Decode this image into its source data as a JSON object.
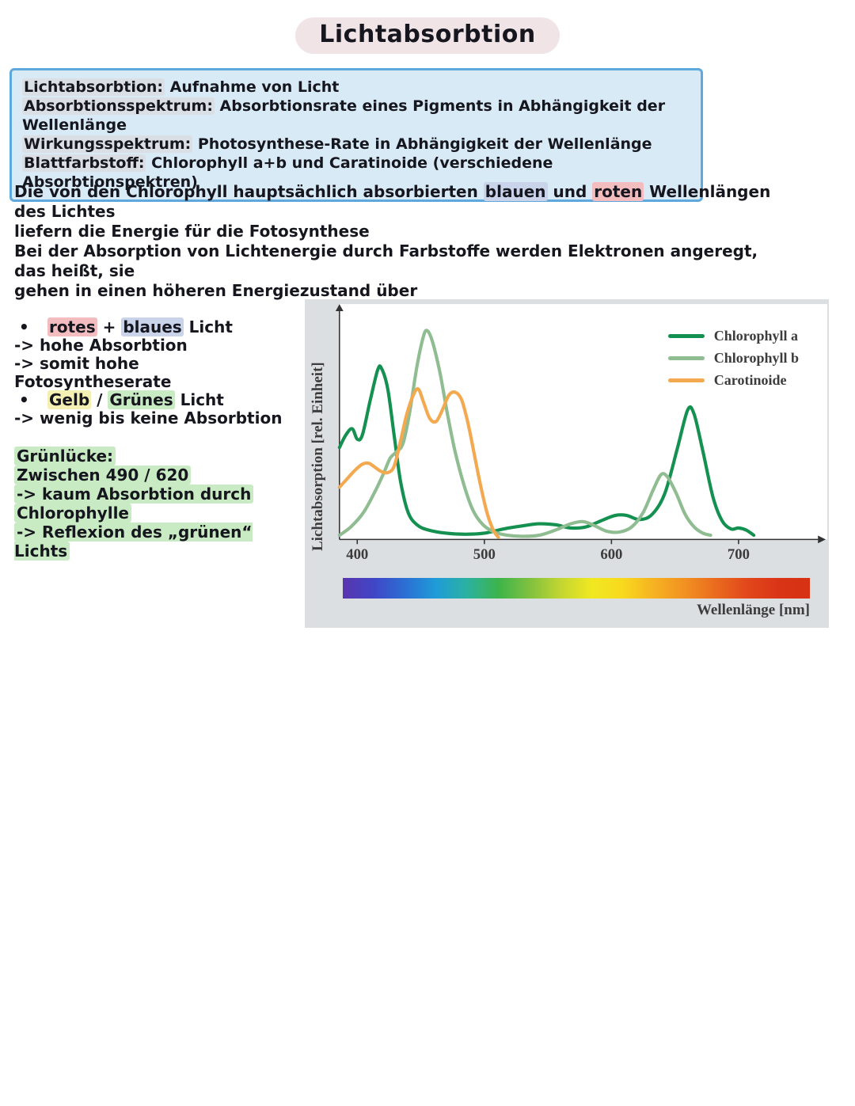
{
  "page": {
    "title": "Lichtabsorbtion"
  },
  "info_box": {
    "rows": [
      {
        "term": "Lichtabsorbtion:",
        "rest": " Aufnahme von Licht"
      },
      {
        "term": "Absorbtionsspektrum:",
        "rest": " Absorbtionsrate eines Pigments in Abhängigkeit der Wellenlänge"
      },
      {
        "term": "Wirkungsspektrum:",
        "rest": " Photosynthese-Rate in Abhängigkeit der Wellenlänge"
      },
      {
        "term": "Blattfarbstoff:",
        "rest": " Chlorophyll a+b und Caratinoide (verschiedene Absorbtionspektren)"
      }
    ]
  },
  "paragraph": {
    "line1_pre": "Die von den Chlorophyll hauptsächlich absorbierten ",
    "line1_blue": "blauen",
    "line1_mid": " und ",
    "line1_red": "roten",
    "line1_post": " Wellenlängen des Lichtes",
    "line2": "liefern die Energie für die Fotosynthese",
    "line3": "Bei der Absorption von Lichtenergie durch Farbstoffe werden Elektronen angeregt, das heißt, sie",
    "line4": "gehen in einen höheren Energiezustand über"
  },
  "bullets": {
    "b1_marker": "•",
    "b1_red": "rotes",
    "b1_plus": " + ",
    "b1_blue": "blaues",
    "b1_post": " Licht",
    "a1": "-> hohe Absorbtion",
    "a2": "-> somit hohe Fotosyntheserate",
    "b2_marker": "•",
    "b2_yellow": "Gelb",
    "b2_slash": " / ",
    "b2_green": "Grünes",
    "b2_post": " Licht",
    "a3": "-> wenig bis keine Absorbtion"
  },
  "green_block": {
    "l1": "Grünlücke:",
    "l2": "Zwischen 490 / 620",
    "l3": "-> kaum Absorbtion durch",
    "l4": "Chlorophylle",
    "l5": "-> Reflexion des „grünen“ Lichts"
  },
  "colors": {
    "info_box_bg": "#d9eaf7",
    "info_box_border": "#5fa8dc",
    "highlight_red": "#f3bcbe",
    "highlight_blue": "#c9d4ea",
    "highlight_yellow": "#f4f0b3",
    "highlight_green": "#c9ebc3",
    "title_highlight": "#f0e4e7",
    "figure_bg": "#dcdfe2"
  },
  "chart_data": {
    "type": "line",
    "title": "",
    "xlabel": "Wellenlänge [nm]",
    "ylabel": "Lichtabsorption [rel. Einheit]",
    "x_unit": "nm",
    "x_range": [
      386,
      760
    ],
    "xticks": [
      400,
      500,
      600,
      700
    ],
    "ylim": [
      0,
      1.05
    ],
    "grid": false,
    "legend_position": "top-right",
    "axis_color": "#333333",
    "tick_label_color": "#3c3c3c",
    "series": [
      {
        "name": "Chlorophyll a",
        "color": "#149150",
        "points": [
          [
            386,
            0.44
          ],
          [
            391,
            0.5
          ],
          [
            396,
            0.53
          ],
          [
            400,
            0.48
          ],
          [
            404,
            0.5
          ],
          [
            410,
            0.66
          ],
          [
            416,
            0.81
          ],
          [
            419,
            0.82
          ],
          [
            424,
            0.72
          ],
          [
            429,
            0.5
          ],
          [
            434,
            0.28
          ],
          [
            440,
            0.13
          ],
          [
            447,
            0.07
          ],
          [
            456,
            0.045
          ],
          [
            470,
            0.03
          ],
          [
            485,
            0.025
          ],
          [
            500,
            0.03
          ],
          [
            515,
            0.05
          ],
          [
            530,
            0.065
          ],
          [
            543,
            0.075
          ],
          [
            556,
            0.07
          ],
          [
            568,
            0.055
          ],
          [
            580,
            0.06
          ],
          [
            592,
            0.09
          ],
          [
            603,
            0.115
          ],
          [
            612,
            0.115
          ],
          [
            622,
            0.095
          ],
          [
            632,
            0.12
          ],
          [
            642,
            0.22
          ],
          [
            652,
            0.44
          ],
          [
            660,
            0.62
          ],
          [
            665,
            0.6
          ],
          [
            672,
            0.42
          ],
          [
            680,
            0.2
          ],
          [
            687,
            0.09
          ],
          [
            694,
            0.05
          ],
          [
            700,
            0.055
          ],
          [
            706,
            0.045
          ],
          [
            712,
            0.02
          ]
        ]
      },
      {
        "name": "Chlorophyll b",
        "color": "#8fbc90",
        "points": [
          [
            386,
            0.02
          ],
          [
            395,
            0.06
          ],
          [
            405,
            0.13
          ],
          [
            414,
            0.23
          ],
          [
            421,
            0.32
          ],
          [
            426,
            0.39
          ],
          [
            431,
            0.42
          ],
          [
            436,
            0.46
          ],
          [
            441,
            0.6
          ],
          [
            447,
            0.83
          ],
          [
            452,
            0.97
          ],
          [
            455,
            1.0
          ],
          [
            459,
            0.95
          ],
          [
            465,
            0.8
          ],
          [
            471,
            0.6
          ],
          [
            477,
            0.42
          ],
          [
            484,
            0.26
          ],
          [
            491,
            0.14
          ],
          [
            499,
            0.07
          ],
          [
            508,
            0.035
          ],
          [
            518,
            0.02
          ],
          [
            530,
            0.015
          ],
          [
            543,
            0.02
          ],
          [
            556,
            0.045
          ],
          [
            568,
            0.075
          ],
          [
            578,
            0.085
          ],
          [
            587,
            0.065
          ],
          [
            596,
            0.04
          ],
          [
            606,
            0.035
          ],
          [
            616,
            0.06
          ],
          [
            625,
            0.13
          ],
          [
            633,
            0.24
          ],
          [
            639,
            0.31
          ],
          [
            644,
            0.3
          ],
          [
            651,
            0.22
          ],
          [
            658,
            0.12
          ],
          [
            665,
            0.06
          ],
          [
            672,
            0.03
          ],
          [
            678,
            0.02
          ]
        ]
      },
      {
        "name": "Carotinoide",
        "color": "#f3a94f",
        "points": [
          [
            386,
            0.25
          ],
          [
            392,
            0.29
          ],
          [
            398,
            0.33
          ],
          [
            404,
            0.36
          ],
          [
            409,
            0.365
          ],
          [
            414,
            0.345
          ],
          [
            419,
            0.325
          ],
          [
            424,
            0.32
          ],
          [
            429,
            0.35
          ],
          [
            434,
            0.47
          ],
          [
            439,
            0.6
          ],
          [
            444,
            0.69
          ],
          [
            448,
            0.72
          ],
          [
            452,
            0.66
          ],
          [
            457,
            0.58
          ],
          [
            462,
            0.565
          ],
          [
            467,
            0.62
          ],
          [
            472,
            0.69
          ],
          [
            477,
            0.705
          ],
          [
            482,
            0.67
          ],
          [
            487,
            0.56
          ],
          [
            492,
            0.41
          ],
          [
            497,
            0.26
          ],
          [
            502,
            0.13
          ],
          [
            507,
            0.045
          ],
          [
            511,
            0.01
          ]
        ]
      }
    ],
    "spectrum_bar": {
      "colors": [
        "#5a35ae",
        "#4046c6",
        "#2b6fd4",
        "#1f9cd8",
        "#2bb2a0",
        "#3cb44b",
        "#7fc13f",
        "#c3d631",
        "#f0e820",
        "#f8d91e",
        "#f6b122",
        "#f29022",
        "#ea6a1e",
        "#e1471b",
        "#da3417",
        "#d63114"
      ]
    }
  }
}
